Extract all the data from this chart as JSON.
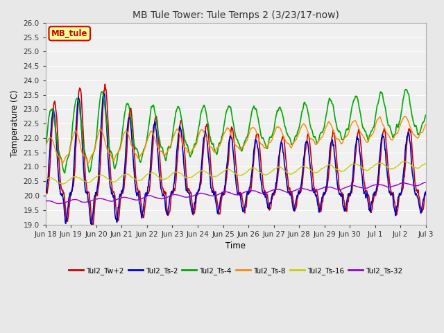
{
  "title": "MB Tule Tower: Tule Temps 2 (3/23/17-now)",
  "xlabel": "Time",
  "ylabel": "Temperature (C)",
  "ylim": [
    19.0,
    26.0
  ],
  "yticks": [
    19.0,
    19.5,
    20.0,
    20.5,
    21.0,
    21.5,
    22.0,
    22.5,
    23.0,
    23.5,
    24.0,
    24.5,
    25.0,
    25.5,
    26.0
  ],
  "xtick_labels": [
    "Jun 18",
    "Jun 19",
    "Jun 20",
    "Jun 21",
    "Jun 22",
    "Jun 23",
    "Jun 24",
    "Jun 25",
    "Jun 26",
    "Jun 27",
    "Jun 28",
    "Jun 29",
    "Jun 30",
    "Jul 1",
    "Jul 2",
    "Jul 3"
  ],
  "series_colors": [
    "#cc0000",
    "#0000cc",
    "#00aa00",
    "#ff8800",
    "#cccc00",
    "#9900cc"
  ],
  "series_labels": [
    "Tul2_Tw+2",
    "Tul2_Ts-2",
    "Tul2_Ts-4",
    "Tul2_Ts-8",
    "Tul2_Ts-16",
    "Tul2_Ts-32"
  ],
  "legend_label": "MB_tule",
  "background_color": "#e8e8e8",
  "grid_color": "#ffffff",
  "plot_bg": "#f0f0f0",
  "n_points": 1500
}
